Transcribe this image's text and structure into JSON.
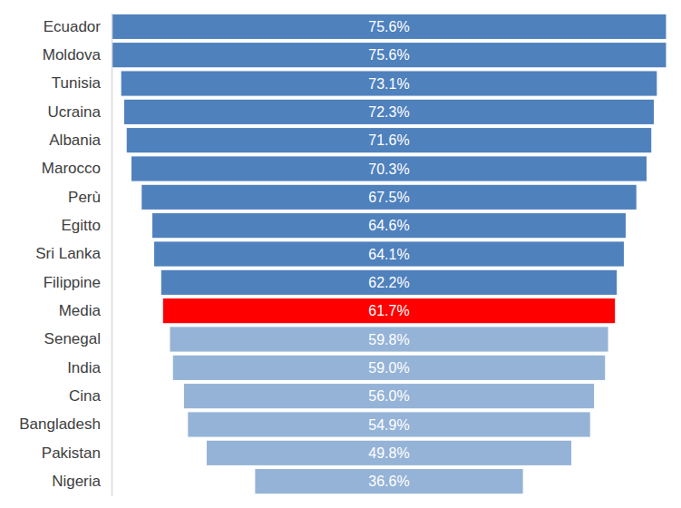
{
  "chart_data": {
    "type": "funnel",
    "orientation": "horizontal",
    "categories": [
      "Ecuador",
      "Moldova",
      "Tunisia",
      "Ucraina",
      "Albania",
      "Marocco",
      "Perù",
      "Egitto",
      "Sri Lanka",
      "Filippine",
      "Media",
      "Senegal",
      "India",
      "Cina",
      "Bangladesh",
      "Pakistan",
      "Nigeria"
    ],
    "values": [
      75.6,
      75.6,
      73.1,
      72.3,
      71.6,
      70.3,
      67.5,
      64.6,
      64.1,
      62.2,
      61.7,
      59.8,
      59.0,
      56.0,
      54.9,
      49.8,
      36.6
    ],
    "value_labels": [
      "75.6%",
      "75.6%",
      "73.1%",
      "72.3%",
      "71.6%",
      "70.3%",
      "67.5%",
      "64.6%",
      "64.1%",
      "62.2%",
      "61.7%",
      "59.8%",
      "59.0%",
      "56.0%",
      "54.9%",
      "49.8%",
      "36.6%"
    ],
    "colors": [
      "#4f81bd",
      "#4f81bd",
      "#4f81bd",
      "#4f81bd",
      "#4f81bd",
      "#4f81bd",
      "#4f81bd",
      "#4f81bd",
      "#4f81bd",
      "#4f81bd",
      "#ff0000",
      "#95b3d7",
      "#95b3d7",
      "#95b3d7",
      "#95b3d7",
      "#95b3d7",
      "#95b3d7"
    ],
    "data_labels": true,
    "tick_labels": "y"
  }
}
